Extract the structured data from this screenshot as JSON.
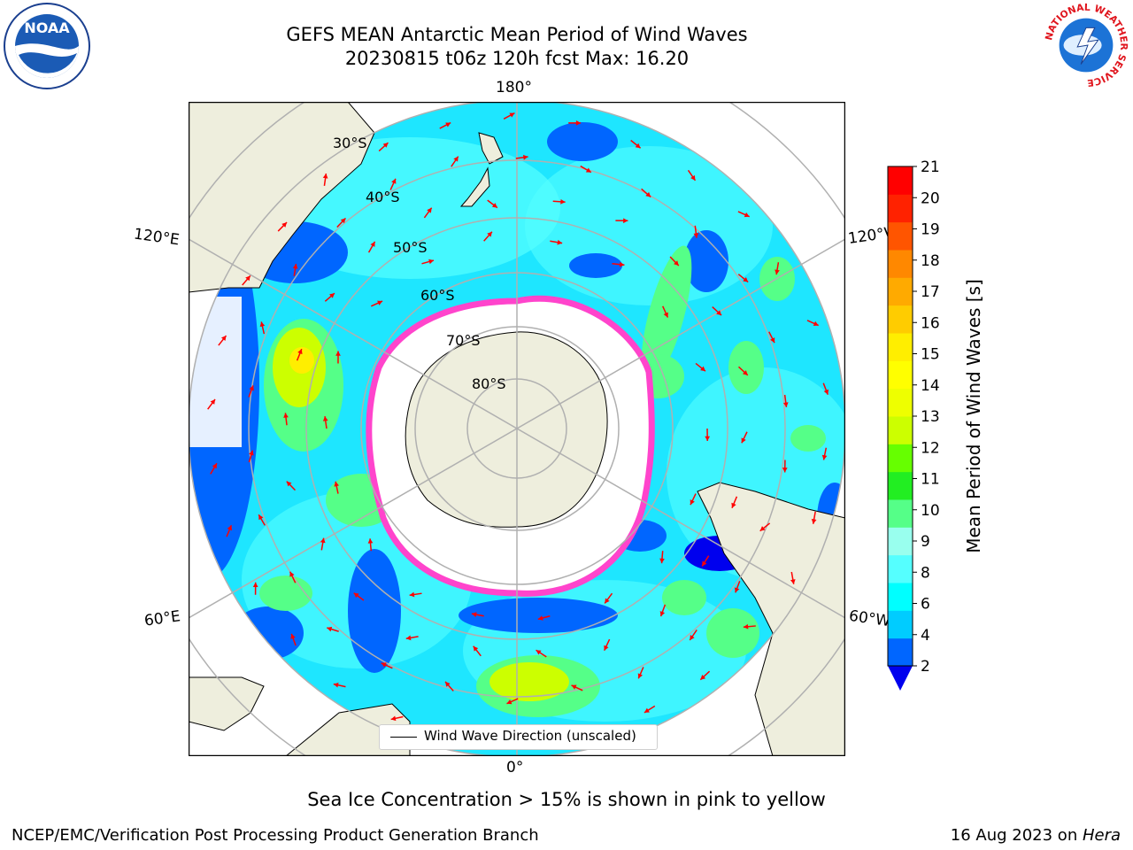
{
  "title": {
    "line1": "GEFS MEAN Antarctic Mean Period of Wind Waves",
    "line2": "20230815 t06z 120h fcst   Max: 16.20"
  },
  "map": {
    "projection": "south-polar-stereographic",
    "lon_labels": {
      "top": "180°",
      "bottom": "0°",
      "left_upper": "120°E",
      "left_lower": "60°E",
      "right_upper": "120°W",
      "right_lower": "60°W"
    },
    "lat_labels": [
      "30°S",
      "40°S",
      "50°S",
      "60°S",
      "70°S",
      "80°S"
    ],
    "legend": "Wind Wave Direction (unscaled)",
    "colors": {
      "land": "#eeeedd",
      "ice": "#ffffff",
      "gridline": "#b0b0b0",
      "arrow": "#ff0000",
      "ice_edge": "#ff44cc"
    }
  },
  "colorbar": {
    "label": "Mean Period of Wind Waves [s]",
    "ticks": [
      "21",
      "20",
      "19",
      "18",
      "17",
      "16",
      "15",
      "14",
      "13",
      "12",
      "11",
      "10",
      "9",
      "8",
      "6",
      "4",
      "2"
    ],
    "colors_bottom_to_top": [
      "#0066ff",
      "#00ccff",
      "#00ffff",
      "#55ffff",
      "#99ffee",
      "#55ff88",
      "#22ee22",
      "#66ff00",
      "#ccff00",
      "#eeff00",
      "#ffff00",
      "#ffee00",
      "#ffcc00",
      "#ffaa00",
      "#ff8800",
      "#ff5500",
      "#ff2200",
      "#ff0000"
    ],
    "underflow_color": "#0000ee"
  },
  "logos": {
    "noaa": "NOAA",
    "nws_ring": "NATIONAL WEATHER SERVICE"
  },
  "footer": {
    "note": "Sea Ice Concentration > 15% is shown in pink to yellow",
    "branch": "NCEP/EMC/Verification Post Processing Product Generation Branch",
    "date": "16 Aug 2023 on ",
    "machine": "Hera"
  }
}
